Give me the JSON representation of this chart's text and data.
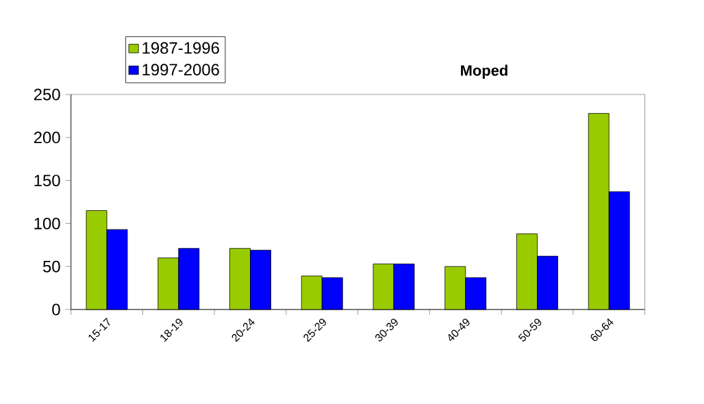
{
  "chart_data": {
    "type": "bar",
    "title": "Moped",
    "categories": [
      "15-17",
      "18-19",
      "20-24",
      "25-29",
      "30-39",
      "40-49",
      "50-59",
      "60-64"
    ],
    "series": [
      {
        "name": "1987-1996",
        "color": "#99cc00",
        "values": [
          115,
          60,
          71,
          39,
          53,
          50,
          88,
          228
        ]
      },
      {
        "name": "1997-2006",
        "color": "#0000ff",
        "values": [
          93,
          71,
          69,
          37,
          53,
          37,
          62,
          137
        ]
      }
    ],
    "ylim": [
      0,
      250
    ],
    "yticks": [
      0,
      50,
      100,
      150,
      200,
      250
    ],
    "grid": false,
    "legend": "top left"
  }
}
